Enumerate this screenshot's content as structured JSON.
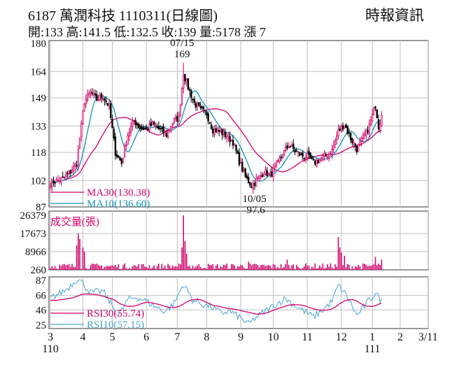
{
  "header": {
    "title": "6187  萬潤科技 1110311(日線圖)",
    "info": "開:133 高:141.5 低:132.5 收:139 量:5178 漲 7",
    "source": "時報資訊"
  },
  "colors": {
    "up": "#d4006a",
    "down": "#000000",
    "ma30": "#d4006a",
    "ma10": "#1592b8",
    "rsi30": "#d4006a",
    "rsi10": "#4aa3cf",
    "volume": "#d4006a",
    "grid": "#c0c0c0"
  },
  "chart_data": [
    {
      "type": "candlestick",
      "price_ticks": [
        "180",
        "164",
        "149",
        "133",
        "118",
        "102",
        "87"
      ],
      "tick_values": [
        180,
        164,
        149,
        133,
        118,
        102,
        87
      ],
      "ylim": [
        87,
        180
      ],
      "high_annotation": {
        "date": "07/15",
        "value": "169"
      },
      "low_annotation": {
        "date": "10/05",
        "value": "97.6"
      },
      "legend": [
        {
          "label": "MA30(130.38)",
          "color": "#d4006a"
        },
        {
          "label": "MA10(136.60)",
          "color": "#1592b8"
        }
      ],
      "keypoints": [
        {
          "i": 0,
          "p": 101
        },
        {
          "i": 8,
          "p": 103
        },
        {
          "i": 13,
          "p": 107
        },
        {
          "i": 17,
          "p": 112
        },
        {
          "i": 22,
          "p": 147
        },
        {
          "i": 26,
          "p": 152
        },
        {
          "i": 30,
          "p": 148
        },
        {
          "i": 34,
          "p": 150
        },
        {
          "i": 38,
          "p": 144
        },
        {
          "i": 42,
          "p": 118
        },
        {
          "i": 46,
          "p": 112
        },
        {
          "i": 50,
          "p": 128
        },
        {
          "i": 54,
          "p": 136
        },
        {
          "i": 58,
          "p": 132
        },
        {
          "i": 62,
          "p": 131
        },
        {
          "i": 66,
          "p": 134
        },
        {
          "i": 72,
          "p": 130
        },
        {
          "i": 75,
          "p": 128
        },
        {
          "i": 79,
          "p": 135
        },
        {
          "i": 83,
          "p": 138
        },
        {
          "i": 86,
          "p": 163
        },
        {
          "i": 89,
          "p": 155
        },
        {
          "i": 93,
          "p": 146
        },
        {
          "i": 97,
          "p": 142
        },
        {
          "i": 101,
          "p": 140
        },
        {
          "i": 105,
          "p": 131
        },
        {
          "i": 109,
          "p": 130
        },
        {
          "i": 113,
          "p": 128
        },
        {
          "i": 118,
          "p": 124
        },
        {
          "i": 122,
          "p": 113
        },
        {
          "i": 126,
          "p": 104
        },
        {
          "i": 130,
          "p": 99
        },
        {
          "i": 134,
          "p": 103
        },
        {
          "i": 138,
          "p": 107
        },
        {
          "i": 142,
          "p": 105
        },
        {
          "i": 146,
          "p": 110
        },
        {
          "i": 150,
          "p": 117
        },
        {
          "i": 154,
          "p": 122
        },
        {
          "i": 158,
          "p": 119
        },
        {
          "i": 162,
          "p": 116
        },
        {
          "i": 166,
          "p": 116
        },
        {
          "i": 170,
          "p": 112
        },
        {
          "i": 174,
          "p": 114
        },
        {
          "i": 178,
          "p": 116
        },
        {
          "i": 182,
          "p": 119
        },
        {
          "i": 186,
          "p": 130
        },
        {
          "i": 190,
          "p": 134
        },
        {
          "i": 194,
          "p": 126
        },
        {
          "i": 198,
          "p": 120
        },
        {
          "i": 202,
          "p": 126
        },
        {
          "i": 206,
          "p": 133
        },
        {
          "i": 210,
          "p": 145
        },
        {
          "i": 212,
          "p": 133
        },
        {
          "i": 214,
          "p": 139
        }
      ],
      "rsi_keypoints": [
        {
          "i": 0,
          "p": 62
        },
        {
          "i": 10,
          "p": 74
        },
        {
          "i": 18,
          "p": 90
        },
        {
          "i": 26,
          "p": 70
        },
        {
          "i": 34,
          "p": 72
        },
        {
          "i": 40,
          "p": 52
        },
        {
          "i": 44,
          "p": 38
        },
        {
          "i": 50,
          "p": 60
        },
        {
          "i": 56,
          "p": 64
        },
        {
          "i": 62,
          "p": 58
        },
        {
          "i": 68,
          "p": 50
        },
        {
          "i": 74,
          "p": 44
        },
        {
          "i": 80,
          "p": 55
        },
        {
          "i": 86,
          "p": 82
        },
        {
          "i": 92,
          "p": 60
        },
        {
          "i": 98,
          "p": 54
        },
        {
          "i": 104,
          "p": 50
        },
        {
          "i": 110,
          "p": 42
        },
        {
          "i": 116,
          "p": 44
        },
        {
          "i": 122,
          "p": 36
        },
        {
          "i": 128,
          "p": 26
        },
        {
          "i": 132,
          "p": 34
        },
        {
          "i": 140,
          "p": 46
        },
        {
          "i": 146,
          "p": 54
        },
        {
          "i": 152,
          "p": 62
        },
        {
          "i": 158,
          "p": 52
        },
        {
          "i": 164,
          "p": 44
        },
        {
          "i": 170,
          "p": 36
        },
        {
          "i": 176,
          "p": 46
        },
        {
          "i": 182,
          "p": 58
        },
        {
          "i": 186,
          "p": 80
        },
        {
          "i": 192,
          "p": 64
        },
        {
          "i": 198,
          "p": 38
        },
        {
          "i": 204,
          "p": 54
        },
        {
          "i": 210,
          "p": 70
        },
        {
          "i": 214,
          "p": 58
        }
      ],
      "volume_spikes": [
        {
          "i": 18,
          "v": 17673
        },
        {
          "i": 19,
          "v": 15000
        },
        {
          "i": 17,
          "v": 12000
        },
        {
          "i": 21,
          "v": 11000
        },
        {
          "i": 22,
          "v": 9000
        },
        {
          "i": 86,
          "v": 26379
        },
        {
          "i": 85,
          "v": 11000
        },
        {
          "i": 87,
          "v": 14000
        },
        {
          "i": 88,
          "v": 8000
        },
        {
          "i": 186,
          "v": 16000
        },
        {
          "i": 187,
          "v": 11000
        },
        {
          "i": 188,
          "v": 8500
        },
        {
          "i": 190,
          "v": 7000
        },
        {
          "i": 210,
          "v": 6500
        },
        {
          "i": 153,
          "v": 5200
        },
        {
          "i": 128,
          "v": 4200
        }
      ]
    },
    {
      "type": "bar",
      "title": "成交量(張)",
      "ticks": [
        "26379",
        "17673",
        "8966",
        "260"
      ],
      "tick_values": [
        26379,
        17673,
        8966,
        260
      ],
      "ylim": [
        260,
        26379
      ]
    },
    {
      "type": "line",
      "ticks": [
        "87",
        "66",
        "46",
        "25"
      ],
      "tick_values": [
        87,
        66,
        46,
        25
      ],
      "ylim": [
        20,
        90
      ],
      "series": [
        {
          "name": "RSI30(55.74)",
          "color": "#d4006a"
        },
        {
          "name": "RSI10(57.15)",
          "color": "#4aa3cf"
        }
      ]
    }
  ],
  "x_axis": {
    "months": [
      "3",
      "4",
      "5",
      "6",
      "7",
      "8",
      "9",
      "10",
      "11",
      "12",
      "1",
      "2",
      "3/11"
    ],
    "month_index": [
      0,
      21,
      40,
      62,
      82,
      101,
      123,
      144,
      166,
      188,
      208,
      226,
      244
    ],
    "year_labels": [
      {
        "label": "110",
        "i": 0
      },
      {
        "label": "111",
        "i": 208
      }
    ]
  }
}
